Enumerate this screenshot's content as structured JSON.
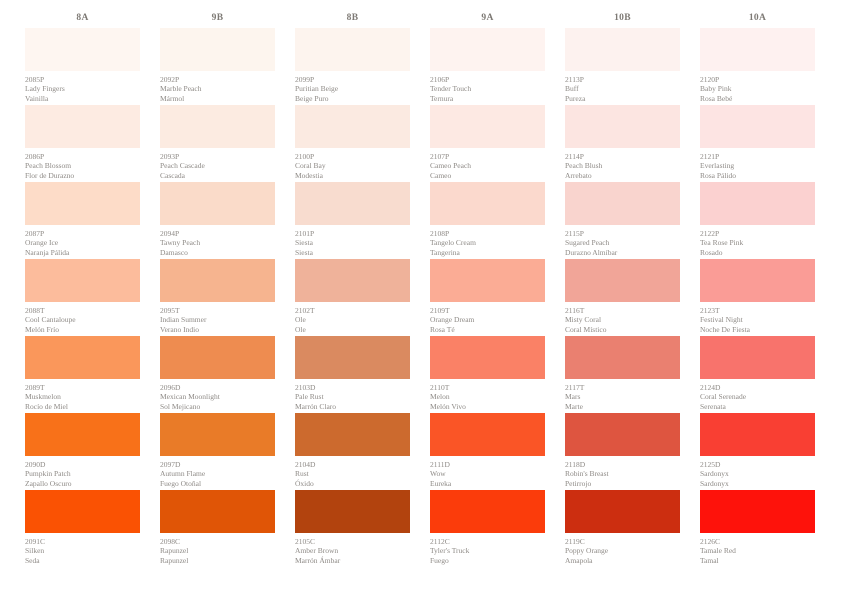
{
  "page": {
    "background": "#ffffff",
    "text_color": "#8e8a86",
    "header_color": "#7e7a75"
  },
  "columns": [
    {
      "header": "8A",
      "swatches": [
        {
          "code": "2085P",
          "name": "Lady Fingers",
          "name_es": "Vainilla",
          "color": "#FEF6F1"
        },
        {
          "code": "2086P",
          "name": "Peach Blossom",
          "name_es": "Flor de Durazno",
          "color": "#FDEBE2"
        },
        {
          "code": "2087P",
          "name": "Orange Ice",
          "name_es": "Naranja Pálida",
          "color": "#FDDCC8"
        },
        {
          "code": "2088T",
          "name": "Cool Cantaloupe",
          "name_es": "Melón Frío",
          "color": "#FCBC9C"
        },
        {
          "code": "2089T",
          "name": "Muskmelon",
          "name_es": "Rocío de Miel",
          "color": "#FA975B"
        },
        {
          "code": "2090D",
          "name": "Pumpkin Patch",
          "name_es": "Zapallo Oscuro",
          "color": "#F87119"
        },
        {
          "code": "2091C",
          "name": "Silken",
          "name_es": "Seda",
          "color": "#FA5203"
        }
      ]
    },
    {
      "header": "9B",
      "swatches": [
        {
          "code": "2092P",
          "name": "Marble Peach",
          "name_es": "Mármol",
          "color": "#FDF5EE"
        },
        {
          "code": "2093P",
          "name": "Peach Cascade",
          "name_es": "Cascada",
          "color": "#FCEBE1"
        },
        {
          "code": "2094P",
          "name": "Tawny Peach",
          "name_es": "Damasco",
          "color": "#FADBC9"
        },
        {
          "code": "2095T",
          "name": "Indian Summer",
          "name_es": "Verano Indio",
          "color": "#F6B48F"
        },
        {
          "code": "2096D",
          "name": "Mexican Moonlight",
          "name_es": "Sol Mejicano",
          "color": "#EE8C50"
        },
        {
          "code": "2097D",
          "name": "Autumn Flame",
          "name_es": "Fuego Otoñal",
          "color": "#E97B28"
        },
        {
          "code": "2098C",
          "name": "Rapunzel",
          "name_es": "Rapunzel",
          "color": "#E05506"
        }
      ]
    },
    {
      "header": "8B",
      "swatches": [
        {
          "code": "2099P",
          "name": "Puritian Beige",
          "name_es": "Beige Puro",
          "color": "#FDF4EE"
        },
        {
          "code": "2100P",
          "name": "Coral Bay",
          "name_es": "Modestia",
          "color": "#FBEAE1"
        },
        {
          "code": "2101P",
          "name": "Siesta",
          "name_es": "Siesta",
          "color": "#F8DCCF"
        },
        {
          "code": "2102T",
          "name": "Ole",
          "name_es": "Ole",
          "color": "#EFB29A"
        },
        {
          "code": "2103D",
          "name": "Pale Rust",
          "name_es": "Marrón Claro",
          "color": "#DA8A60"
        },
        {
          "code": "2104D",
          "name": "Rust",
          "name_es": "Óxido",
          "color": "#CC6A2E"
        },
        {
          "code": "2105C",
          "name": "Amber Brown",
          "name_es": "Marrón Ámbar",
          "color": "#B2430E"
        }
      ]
    },
    {
      "header": "9A",
      "swatches": [
        {
          "code": "2106P",
          "name": "Tender Touch",
          "name_es": "Ternura",
          "color": "#FEF3F0"
        },
        {
          "code": "2107P",
          "name": "Cameo Peach",
          "name_es": "Cameo",
          "color": "#FDE9E3"
        },
        {
          "code": "2108P",
          "name": "Tangelo Cream",
          "name_es": "Tangerina",
          "color": "#FBD9CD"
        },
        {
          "code": "2109T",
          "name": "Orange Dream",
          "name_es": "Rosa Té",
          "color": "#FBAC95"
        },
        {
          "code": "2110T",
          "name": "Melon",
          "name_es": "Melón Vivo",
          "color": "#FA8166"
        },
        {
          "code": "2111D",
          "name": "Wow",
          "name_es": "Eureka",
          "color": "#FA5526"
        },
        {
          "code": "2112C",
          "name": "Tyler's Truck",
          "name_es": "Fuego",
          "color": "#FB3C0B"
        }
      ]
    },
    {
      "header": "10B",
      "swatches": [
        {
          "code": "2113P",
          "name": "Buff",
          "name_es": "Pureza",
          "color": "#FDF2EF"
        },
        {
          "code": "2114P",
          "name": "Peach Blush",
          "name_es": "Arrebato",
          "color": "#FCE5E1"
        },
        {
          "code": "2115P",
          "name": "Sugared Peach",
          "name_es": "Durazno Almíbar",
          "color": "#F9D4CE"
        },
        {
          "code": "2116T",
          "name": "Misty Coral",
          "name_es": "Coral Místico",
          "color": "#F1A598"
        },
        {
          "code": "2117T",
          "name": "Mars",
          "name_es": "Marte",
          "color": "#EA8070"
        },
        {
          "code": "2118D",
          "name": "Robin's Breast",
          "name_es": "Petirrojo",
          "color": "#DE5540"
        },
        {
          "code": "2119C",
          "name": "Poppy Orange",
          "name_es": "Amapola",
          "color": "#CC2E10"
        }
      ]
    },
    {
      "header": "10A",
      "swatches": [
        {
          "code": "2120P",
          "name": "Baby Pink",
          "name_es": "Rosa Bebé",
          "color": "#FEF1F0"
        },
        {
          "code": "2121P",
          "name": "Everlasting",
          "name_es": "Rosa Pálido",
          "color": "#FDE4E3"
        },
        {
          "code": "2122P",
          "name": "Tea Rose Pink",
          "name_es": "Rosado",
          "color": "#FBD1D0"
        },
        {
          "code": "2123T",
          "name": "Festival Night",
          "name_es": "Noche De Fiesta",
          "color": "#FA9C96"
        },
        {
          "code": "2124D",
          "name": "Coral Serenade",
          "name_es": "Serenata",
          "color": "#F8736C"
        },
        {
          "code": "2125D",
          "name": "Sardonyx",
          "name_es": "Sardonyx",
          "color": "#F93F33"
        },
        {
          "code": "2126C",
          "name": "Tamale Red",
          "name_es": "Tamal",
          "color": "#FE120B"
        }
      ]
    }
  ]
}
